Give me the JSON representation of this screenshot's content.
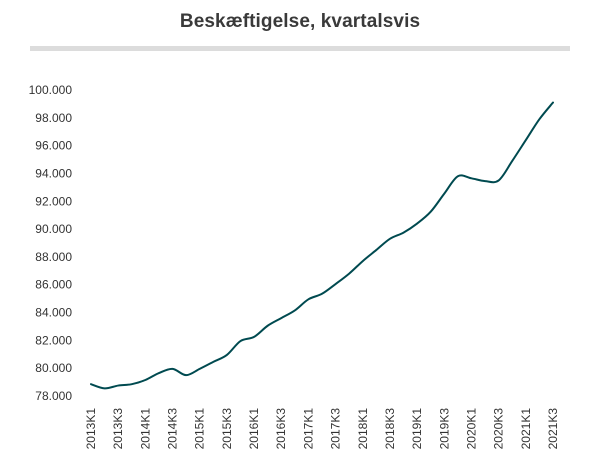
{
  "chart_data": {
    "type": "line",
    "title": "Beskæftigelse, kvartalsvis",
    "xlabel": "",
    "ylabel": "",
    "ylim": [
      78000,
      100000
    ],
    "y_ticks": [
      78000,
      80000,
      82000,
      84000,
      86000,
      88000,
      90000,
      92000,
      94000,
      96000,
      98000,
      100000
    ],
    "y_tick_labels": [
      "78.000",
      "80.000",
      "82.000",
      "84.000",
      "86.000",
      "88.000",
      "90.000",
      "92.000",
      "94.000",
      "96.000",
      "98.000",
      "100.000"
    ],
    "x_tick_labels": [
      "2013K1",
      "2013K3",
      "2014K1",
      "2014K3",
      "2015K1",
      "2015K3",
      "2016K1",
      "2016K3",
      "2017K1",
      "2017K3",
      "2018K1",
      "2018K3",
      "2019K1",
      "2019K3",
      "2020K1",
      "2020K3",
      "2021K1",
      "2021K3"
    ],
    "x": [
      "2013K1",
      "2013K2",
      "2013K3",
      "2013K4",
      "2014K1",
      "2014K2",
      "2014K3",
      "2014K4",
      "2015K1",
      "2015K2",
      "2015K3",
      "2015K4",
      "2016K1",
      "2016K2",
      "2016K3",
      "2016K4",
      "2017K1",
      "2017K2",
      "2017K3",
      "2017K4",
      "2018K1",
      "2018K2",
      "2018K3",
      "2018K4",
      "2019K1",
      "2019K2",
      "2019K3",
      "2019K4",
      "2020K1",
      "2020K2",
      "2020K3",
      "2020K4",
      "2021K1",
      "2021K2",
      "2021K3"
    ],
    "series": [
      {
        "name": "",
        "color": "#004a50",
        "values": [
          78850,
          78550,
          78750,
          78850,
          79150,
          79650,
          79950,
          79500,
          79950,
          80450,
          80950,
          81950,
          82250,
          83050,
          83600,
          84150,
          84950,
          85350,
          86050,
          86800,
          87700,
          88500,
          89300,
          89750,
          90400,
          91250,
          92550,
          93800,
          93650,
          93450,
          93500,
          94900,
          96400,
          97900,
          99100
        ]
      }
    ],
    "grid": false,
    "legend": "none"
  }
}
